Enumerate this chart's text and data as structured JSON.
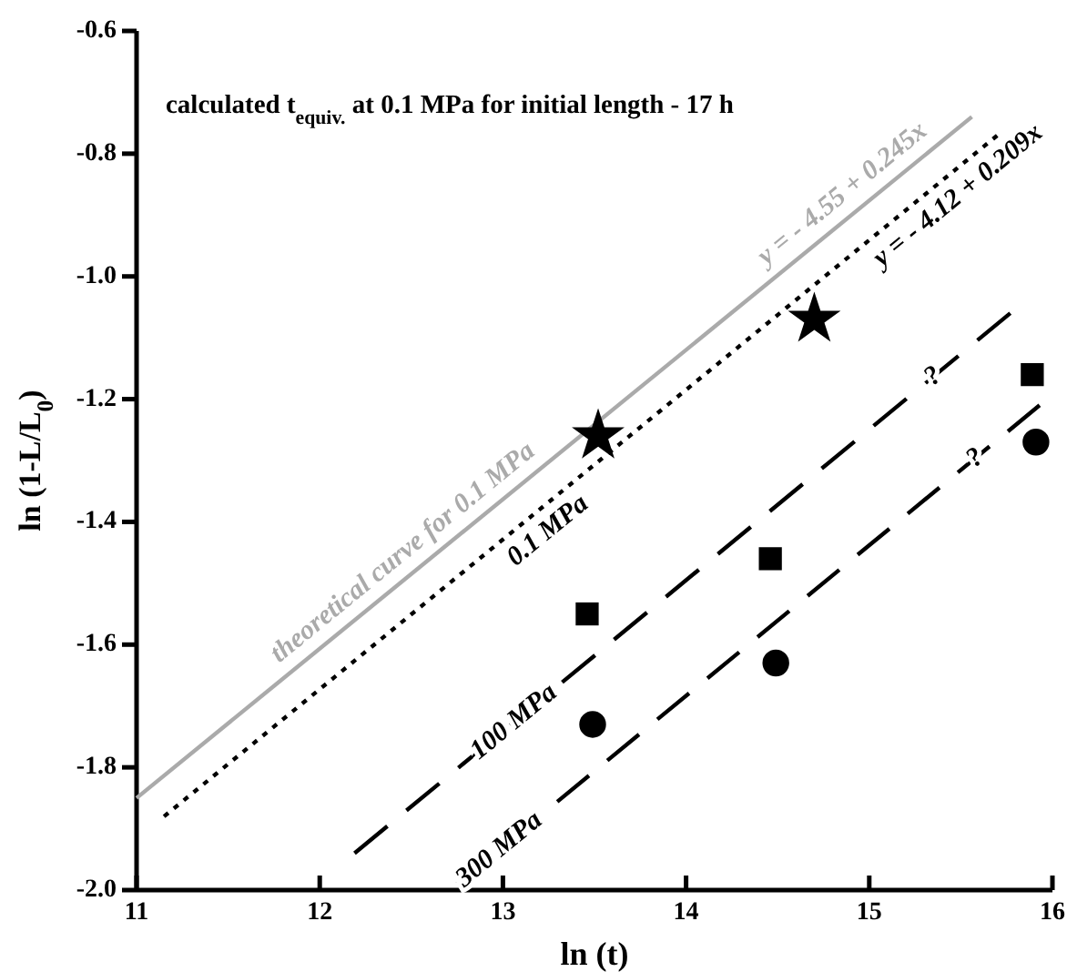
{
  "chart_data": {
    "type": "scatter",
    "title": "calculated t$_{equiv.}$ at 0.1 MPa for initial length - 17 h",
    "xlabel": "ln (t)",
    "ylabel": "ln (1-L/L$_{0}$)",
    "xlim": [
      11,
      16
    ],
    "xticks": [
      11,
      12,
      13,
      14,
      15,
      16
    ],
    "ylim": [
      -2.0,
      -0.6
    ],
    "yticks": [
      {
        "value": -2,
        "label": "-2.0"
      },
      -1.8,
      -1.6,
      -1.4,
      -1.2,
      {
        "value": -1,
        "label": "-1.0"
      },
      -0.8,
      -0.6
    ],
    "grid": false,
    "series": [
      {
        "type": "line",
        "color": "#aaaaaa",
        "line_style": "solid",
        "marker": "none",
        "x": [
          11,
          15.56
        ],
        "values": [
          -1.85,
          -0.74
        ]
      },
      {
        "type": "line",
        "color": "#000000",
        "line_style": "dotted",
        "marker": "none",
        "x": [
          11.15,
          15.7
        ],
        "values": [
          -1.88,
          -0.77
        ]
      },
      {
        "type": "line",
        "color": "#000000",
        "line_style": "dashed",
        "marker": "none",
        "x": [
          12.19,
          15.77
        ],
        "values": [
          -1.94,
          -1.06
        ]
      },
      {
        "type": "line",
        "color": "#000000",
        "line_style": "dashed",
        "marker": "none",
        "x": [
          12.75,
          15.93
        ],
        "values": [
          -1.99,
          -1.21
        ]
      },
      {
        "color": "#000000",
        "marker": "star",
        "x": [
          13.52,
          14.7
        ],
        "values": [
          -1.26,
          -1.07
        ]
      },
      {
        "color": "#000000",
        "marker": "square",
        "x": [
          13.46,
          14.46,
          15.89
        ],
        "values": [
          -1.55,
          -1.46,
          -1.16
        ]
      },
      {
        "color": "#000000",
        "marker": "circle",
        "x": [
          13.49,
          14.49,
          15.91
        ],
        "values": [
          -1.73,
          -1.63,
          -1.27
        ]
      }
    ],
    "annotations": [
      {
        "text": "y = - 4.55 + 0.245x",
        "x": 14.93,
        "y": -0.893
      },
      {
        "text": "y = - 4.12 + 0.209x",
        "x": 15.41,
        "y": -0.841
      },
      {
        "text": "theoretical curve for 0.1 MPa",
        "x": 12.53,
        "y": -1.478
      },
      {
        "text": "0.1 MPa",
        "x": 13.17,
        "y": -1.387
      },
      {
        "text": "100 MPa",
        "x": 13.06,
        "y": -1.726
      },
      {
        "text": "300 MPa",
        "x": 12.98,
        "y": -1.934
      },
      {
        "text": "?",
        "x": 15.35,
        "y": -1.163
      },
      {
        "text": "?",
        "x": 15.58,
        "y": -1.296
      }
    ]
  }
}
